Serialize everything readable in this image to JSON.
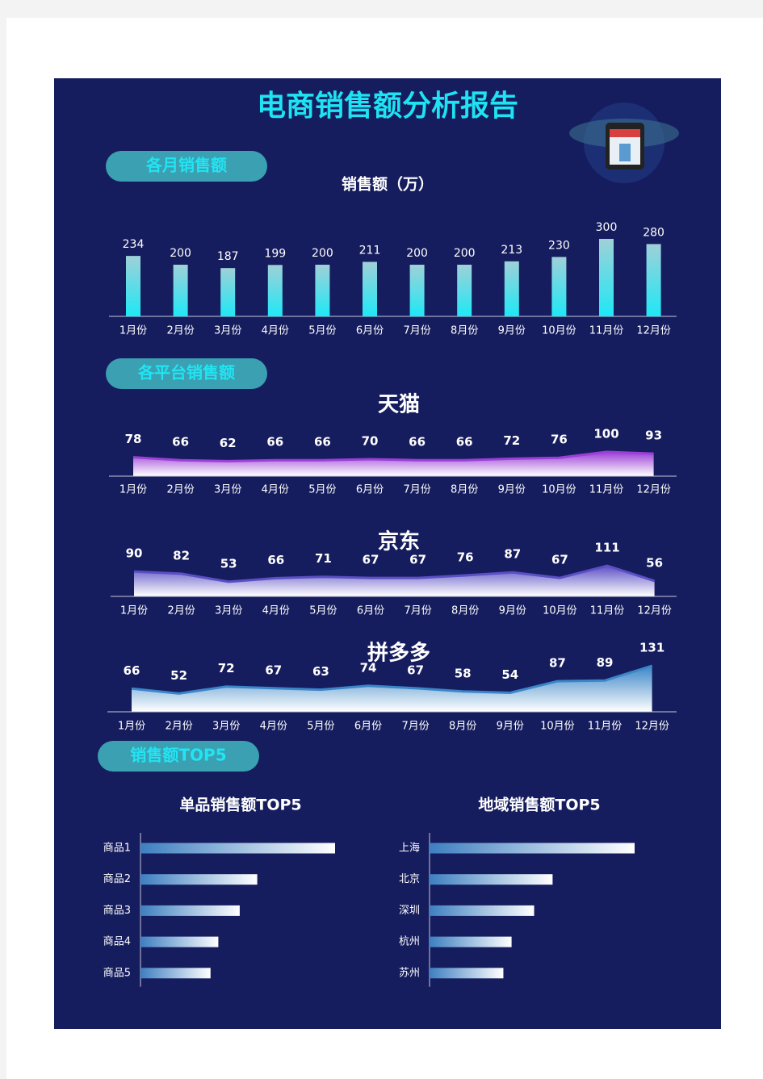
{
  "header": {
    "title": "电商销售额分析报告",
    "sections": [
      "各月销售额",
      "各平台销售额",
      "销售额TOP5"
    ]
  },
  "chart_data": [
    {
      "type": "bar",
      "title": "销售额（万）",
      "categories": [
        "1月份",
        "2月份",
        "3月份",
        "4月份",
        "5月份",
        "6月份",
        "7月份",
        "8月份",
        "9月份",
        "10月份",
        "11月份",
        "12月份"
      ],
      "values": [
        234,
        200,
        187,
        199,
        200,
        211,
        200,
        200,
        213,
        230,
        300,
        280
      ],
      "color": "#1ee8f5"
    },
    {
      "type": "area",
      "title": "天猫",
      "categories": [
        "1月份",
        "2月份",
        "3月份",
        "4月份",
        "5月份",
        "6月份",
        "7月份",
        "8月份",
        "9月份",
        "10月份",
        "11月份",
        "12月份"
      ],
      "values": [
        78,
        66,
        62,
        66,
        66,
        70,
        66,
        66,
        72,
        76,
        100,
        93
      ],
      "color": "#9b3fd6"
    },
    {
      "type": "area",
      "title": "京东",
      "categories": [
        "1月份",
        "2月份",
        "3月份",
        "4月份",
        "5月份",
        "6月份",
        "7月份",
        "8月份",
        "9月份",
        "10月份",
        "11月份",
        "12月份"
      ],
      "values": [
        90,
        82,
        53,
        66,
        71,
        67,
        67,
        76,
        87,
        67,
        111,
        56
      ],
      "color": "#5b4fc4"
    },
    {
      "type": "area",
      "title": "拼多多",
      "categories": [
        "1月份",
        "2月份",
        "3月份",
        "4月份",
        "5月份",
        "6月份",
        "7月份",
        "8月份",
        "9月份",
        "10月份",
        "11月份",
        "12月份"
      ],
      "values": [
        66,
        52,
        72,
        67,
        63,
        74,
        67,
        58,
        54,
        87,
        89,
        131
      ],
      "color": "#3b86c8"
    },
    {
      "type": "hbar",
      "title": "单品销售额TOP5",
      "categories": [
        "商品1",
        "商品2",
        "商品3",
        "商品4",
        "商品5"
      ],
      "values": [
        100,
        60,
        51,
        40,
        36
      ],
      "color": "#3e7fc0"
    },
    {
      "type": "hbar",
      "title": "地域销售额TOP5",
      "categories": [
        "上海",
        "北京",
        "深圳",
        "杭州",
        "苏州"
      ],
      "values": [
        100,
        60,
        51,
        40,
        36
      ],
      "color": "#3e7fc0"
    }
  ]
}
